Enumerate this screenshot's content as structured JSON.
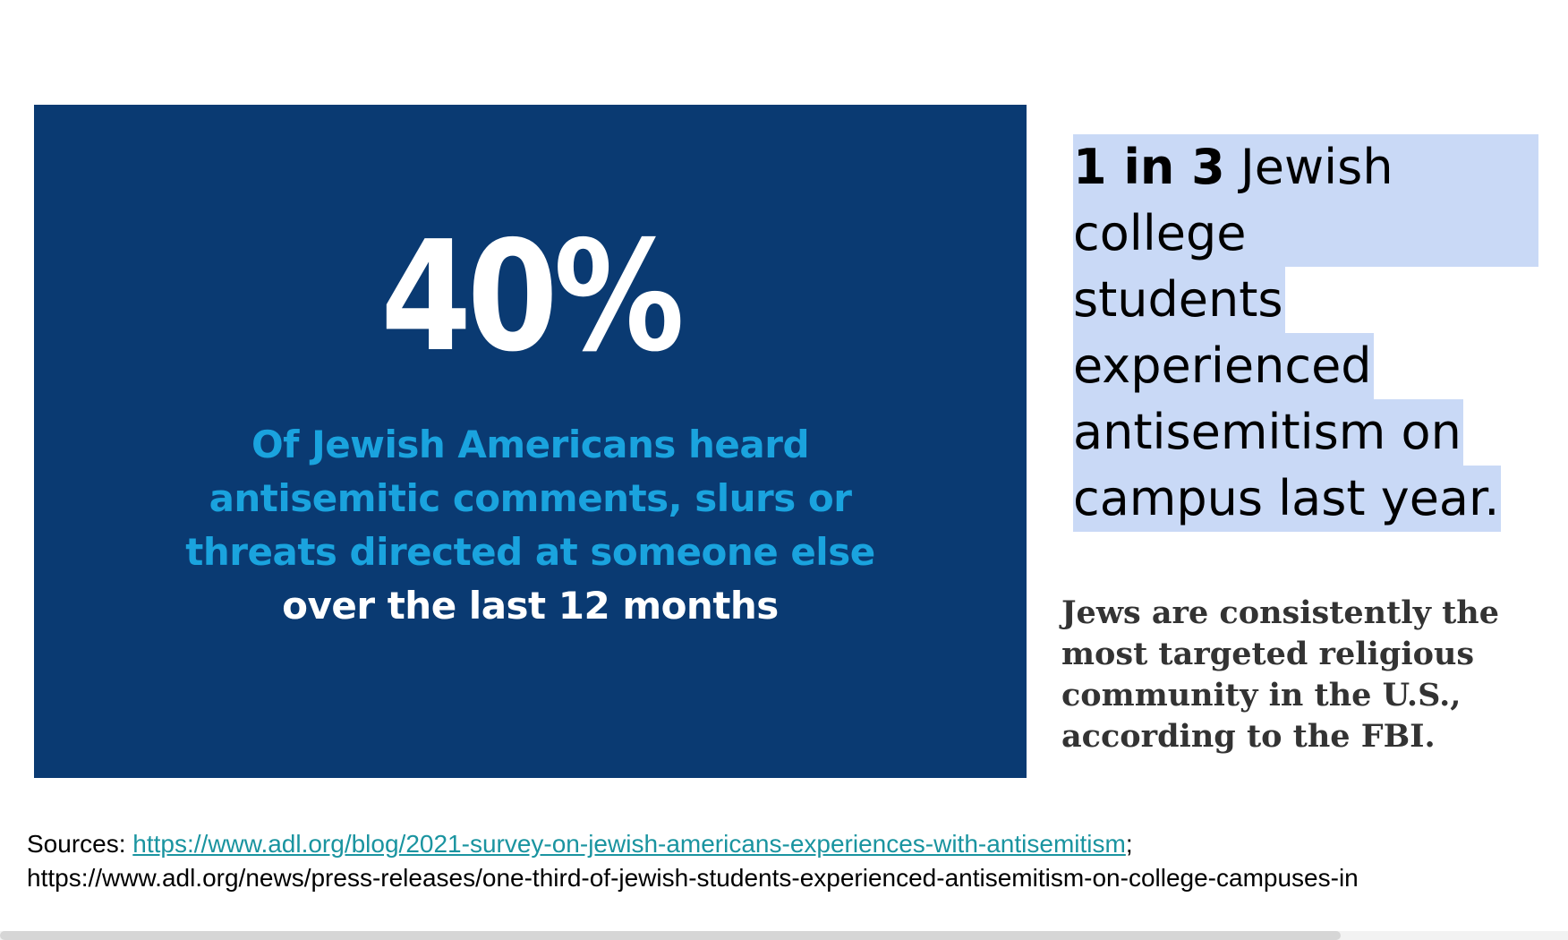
{
  "stat_panel": {
    "big_number": "40%",
    "description_lines": [
      "Of Jewish Americans heard",
      "antisemitic comments, slurs or",
      "threats directed at someone else"
    ],
    "description_last_line": "over the last 12 months",
    "background_color": "#0a3a72",
    "accent_color": "#1aa3de"
  },
  "fact_one": {
    "bold": "1 in 3",
    "line1_rest": " Jewish college",
    "line2": "students",
    "line3": "experienced",
    "line4": "antisemitism on",
    "line5": "campus last year.",
    "highlight_color": "#c9d9f6"
  },
  "fact_two": {
    "lines": [
      "Jews are consistently the",
      "most targeted religious",
      "community in the U.S.,",
      "according to the FBI."
    ]
  },
  "sources": {
    "label": "Sources: ",
    "link1": "https://www.adl.org/blog/2021-survey-on-jewish-americans-experiences-with-antisemitism",
    "separator": ";",
    "link2": "https://www.adl.org/news/press-releases/one-third-of-jewish-students-experienced-antisemitism-on-college-campuses-in"
  }
}
